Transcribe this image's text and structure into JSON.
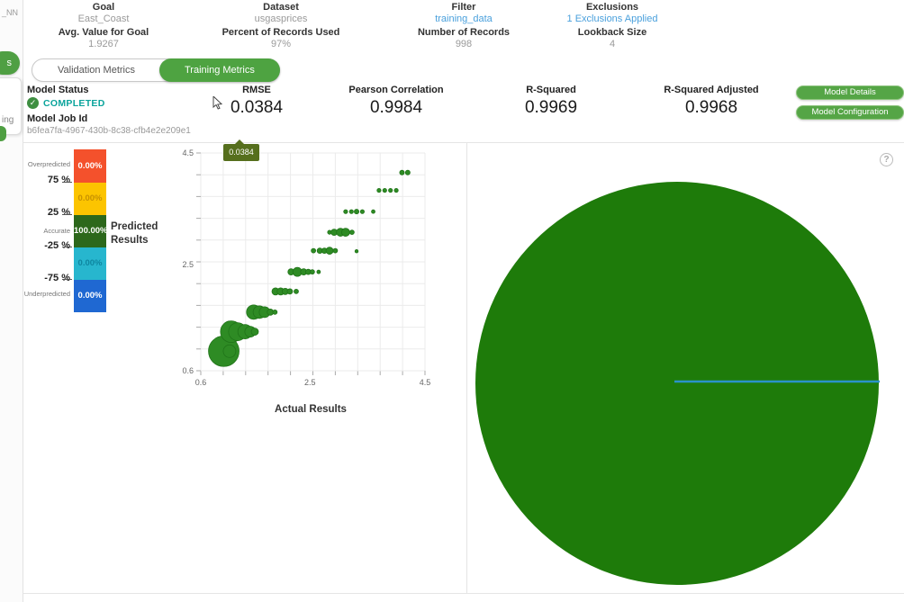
{
  "window": {
    "partial_left_text": "_NN",
    "partial_tab_text": "s",
    "partial_card_text": "ing"
  },
  "header": {
    "columns": [
      {
        "label": "Goal",
        "value": "East_Coast",
        "label2": "Avg. Value for Goal",
        "value2": "1.9267",
        "link": false
      },
      {
        "label": "Dataset",
        "value": "usgasprices",
        "label2": "Percent of Records Used",
        "value2": "97%",
        "link": false
      },
      {
        "label": "Filter",
        "value": "training_data",
        "label2": "Number of Records",
        "value2": "998",
        "link": true
      },
      {
        "label": "Exclusions",
        "value": "1 Exclusions Applied",
        "label2": "Lookback Size",
        "value2": "4",
        "link": true
      }
    ]
  },
  "tabs": {
    "validation": "Validation Metrics",
    "training": "Training Metrics",
    "active": "Training Metrics"
  },
  "model": {
    "status_label": "Model Status",
    "status": "COMPLETED",
    "check_icon": "✓",
    "job_id_label": "Model Job Id",
    "job_id": "b6fea7fa-4967-430b-8c38-cfb4e2e209e1"
  },
  "metrics": [
    {
      "label": "RMSE",
      "value": "0.0384"
    },
    {
      "label": "Pearson Correlation",
      "value": "0.9984"
    },
    {
      "label": "R-Squared",
      "value": "0.9969"
    },
    {
      "label": "R-Squared Adjusted",
      "value": "0.9968"
    }
  ],
  "buttons": {
    "details": "Model Details",
    "configuration": "Model Configuration"
  },
  "tooltip": {
    "value": "0.0384"
  },
  "help_icon": "?",
  "legend": {
    "title_line1": "Predicted",
    "title_line2": "Results",
    "rows": [
      {
        "band": "Overpredicted",
        "value": "0.00%",
        "color": "#f4512c",
        "text_color": "#ffffff"
      },
      {
        "band": "75% to 25%",
        "value": "0.00%",
        "color": "#fcc400",
        "text_color": "#c89200"
      },
      {
        "band": "Accurate",
        "value": "100.00%",
        "color": "#2c681b",
        "text_color": "#ffffff"
      },
      {
        "band": "-25% to -75%",
        "value": "0.00%",
        "color": "#27b6ce",
        "text_color": "#0e86a0"
      },
      {
        "band": "Underpredicted",
        "value": "0.00%",
        "color": "#1f68d2",
        "text_color": "#ffffff"
      }
    ],
    "side_labels": {
      "over": "Overpredicted",
      "p75": "75 %",
      "p25": "25 %",
      "accurate": "Accurate",
      "n25": "-25 %",
      "n75": "-75 %",
      "under": "Underpredicted"
    }
  },
  "chart_data": [
    {
      "type": "scatter",
      "title": "",
      "xlabel": "Actual Results",
      "ylabel": "Predicted Results",
      "xlim": [
        0.6,
        4.5
      ],
      "ylim": [
        0.6,
        4.5
      ],
      "x_ticks": [
        0.6,
        2.5,
        4.5
      ],
      "y_ticks": [
        0.6,
        2.5,
        4.5
      ],
      "grid": true,
      "point_color": "#2e8b24",
      "point_stroke": "#1f7218",
      "points": [
        {
          "x": 1.0,
          "y": 0.95,
          "r": 17
        },
        {
          "x": 1.1,
          "y": 0.95,
          "r": 7
        },
        {
          "x": 1.13,
          "y": 1.3,
          "r": 12
        },
        {
          "x": 1.24,
          "y": 1.3,
          "r": 10
        },
        {
          "x": 1.37,
          "y": 1.3,
          "r": 8
        },
        {
          "x": 1.46,
          "y": 1.3,
          "r": 6
        },
        {
          "x": 1.54,
          "y": 1.3,
          "r": 4
        },
        {
          "x": 1.52,
          "y": 1.65,
          "r": 8
        },
        {
          "x": 1.62,
          "y": 1.65,
          "r": 7
        },
        {
          "x": 1.71,
          "y": 1.65,
          "r": 6
        },
        {
          "x": 1.81,
          "y": 1.65,
          "r": 3.5
        },
        {
          "x": 1.89,
          "y": 1.65,
          "r": 2.5
        },
        {
          "x": 1.9,
          "y": 2.02,
          "r": 4
        },
        {
          "x": 1.99,
          "y": 2.02,
          "r": 4
        },
        {
          "x": 2.07,
          "y": 2.02,
          "r": 3.5
        },
        {
          "x": 2.15,
          "y": 2.02,
          "r": 3
        },
        {
          "x": 2.26,
          "y": 2.02,
          "r": 2.5
        },
        {
          "x": 2.17,
          "y": 2.37,
          "r": 3.5
        },
        {
          "x": 2.28,
          "y": 2.37,
          "r": 5
        },
        {
          "x": 2.39,
          "y": 2.37,
          "r": 3.5
        },
        {
          "x": 2.47,
          "y": 2.37,
          "r": 3
        },
        {
          "x": 2.54,
          "y": 2.37,
          "r": 2.5
        },
        {
          "x": 2.65,
          "y": 2.37,
          "r": 2
        },
        {
          "x": 2.56,
          "y": 2.75,
          "r": 2.5
        },
        {
          "x": 2.67,
          "y": 2.75,
          "r": 3
        },
        {
          "x": 2.75,
          "y": 2.75,
          "r": 3
        },
        {
          "x": 2.84,
          "y": 2.75,
          "r": 4
        },
        {
          "x": 2.94,
          "y": 2.75,
          "r": 2.5
        },
        {
          "x": 3.31,
          "y": 2.74,
          "r": 1.8
        },
        {
          "x": 2.84,
          "y": 3.08,
          "r": 2.2
        },
        {
          "x": 2.92,
          "y": 3.08,
          "r": 3.5
        },
        {
          "x": 3.03,
          "y": 3.08,
          "r": 4.5
        },
        {
          "x": 3.12,
          "y": 3.08,
          "r": 4.5
        },
        {
          "x": 3.23,
          "y": 3.08,
          "r": 2.5
        },
        {
          "x": 3.12,
          "y": 3.45,
          "r": 2.2
        },
        {
          "x": 3.22,
          "y": 3.45,
          "r": 2.2
        },
        {
          "x": 3.31,
          "y": 3.45,
          "r": 2.6
        },
        {
          "x": 3.41,
          "y": 3.45,
          "r": 2.2
        },
        {
          "x": 3.6,
          "y": 3.45,
          "r": 2
        },
        {
          "x": 3.7,
          "y": 3.83,
          "r": 2.2
        },
        {
          "x": 3.8,
          "y": 3.83,
          "r": 2.2
        },
        {
          "x": 3.9,
          "y": 3.83,
          "r": 2.2
        },
        {
          "x": 4.0,
          "y": 3.83,
          "r": 2.2
        },
        {
          "x": 4.1,
          "y": 4.15,
          "r": 2.6
        },
        {
          "x": 4.2,
          "y": 4.15,
          "r": 2.6
        }
      ]
    },
    {
      "type": "pie",
      "slices": [
        {
          "label": "Accurate",
          "value": 100.0,
          "color": "#1e7b0a"
        },
        {
          "label": "Overpredicted",
          "value": 0.0,
          "color": "#f4512c"
        },
        {
          "label": "75% to 25%",
          "value": 0.0,
          "color": "#fcc400"
        },
        {
          "label": "-25% to -75%",
          "value": 0.0,
          "color": "#27b6ce"
        },
        {
          "label": "Underpredicted",
          "value": 0.0,
          "color": "#1f68d2"
        }
      ],
      "boundary_line_color": "#2b93c9",
      "legend_position": "none"
    }
  ],
  "colors": {
    "accent_green": "#4ea341",
    "button_green": "#55a546",
    "status_teal": "#0ba49c",
    "link_blue": "#4aa0dc",
    "tooltip_olive": "#566f1d",
    "pie_green": "#1e7b0a",
    "scatter_green": "#2e8b24",
    "pie_line_blue": "#2b93c9"
  }
}
